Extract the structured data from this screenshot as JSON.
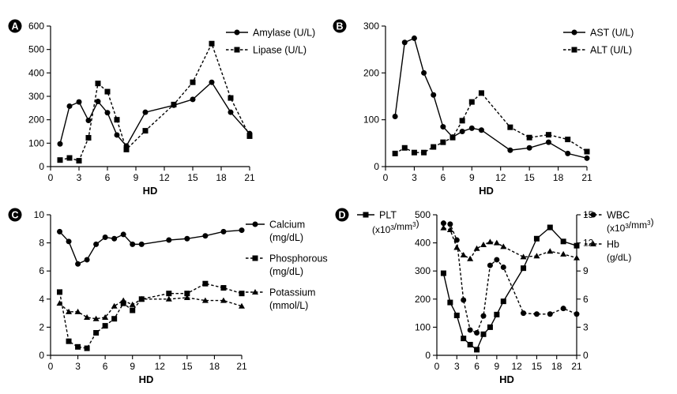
{
  "chart_data": [
    {
      "panel": "A",
      "type": "line",
      "xlabel": "HD",
      "ylabel": "",
      "xlim": [
        0,
        21
      ],
      "ylim": [
        0,
        600
      ],
      "xticks": [
        0,
        3,
        6,
        9,
        12,
        15,
        18,
        21
      ],
      "yticks": [
        0,
        100,
        200,
        300,
        400,
        500,
        600
      ],
      "legend_position": "top-right",
      "series": [
        {
          "name": "Amylase (U/L)",
          "marker": "circle",
          "dash": "solid",
          "x": [
            1,
            2,
            3,
            4,
            5,
            6,
            7,
            8,
            10,
            13,
            15,
            17,
            19,
            21
          ],
          "y": [
            97,
            258,
            276,
            197,
            278,
            230,
            135,
            88,
            232,
            262,
            287,
            360,
            232,
            141
          ]
        },
        {
          "name": "Lipase (U/L)",
          "marker": "square",
          "dash": "dashed",
          "x": [
            1,
            2,
            3,
            4,
            5,
            6,
            7,
            8,
            10,
            13,
            15,
            17,
            19,
            21
          ],
          "y": [
            28,
            37,
            25,
            123,
            355,
            320,
            200,
            73,
            153,
            265,
            360,
            525,
            293,
            130
          ]
        }
      ]
    },
    {
      "panel": "B",
      "type": "line",
      "xlabel": "HD",
      "ylabel": "",
      "xlim": [
        0,
        21
      ],
      "ylim": [
        0,
        300
      ],
      "xticks": [
        0,
        3,
        6,
        9,
        12,
        15,
        18,
        21
      ],
      "yticks": [
        0,
        100,
        200,
        300
      ],
      "legend_position": "top-right",
      "series": [
        {
          "name": "AST (U/L)",
          "marker": "circle",
          "dash": "solid",
          "x": [
            1,
            2,
            3,
            4,
            5,
            6,
            7,
            8,
            9,
            10,
            13,
            15,
            17,
            19,
            21
          ],
          "y": [
            107,
            265,
            274,
            200,
            153,
            85,
            63,
            75,
            82,
            78,
            35,
            40,
            52,
            28,
            18
          ]
        },
        {
          "name": "ALT (U/L)",
          "marker": "square",
          "dash": "dashed",
          "x": [
            1,
            2,
            3,
            4,
            5,
            6,
            7,
            8,
            9,
            10,
            13,
            15,
            17,
            19,
            21
          ],
          "y": [
            28,
            40,
            30,
            30,
            42,
            52,
            62,
            98,
            138,
            157,
            84,
            62,
            68,
            58,
            32
          ]
        }
      ]
    },
    {
      "panel": "C",
      "type": "line",
      "xlabel": "HD",
      "ylabel": "",
      "xlim": [
        0,
        21
      ],
      "ylim": [
        0,
        10
      ],
      "xticks": [
        0,
        3,
        6,
        9,
        12,
        15,
        18,
        21
      ],
      "yticks": [
        0,
        2,
        4,
        6,
        8,
        10
      ],
      "legend_position": "right",
      "series": [
        {
          "name": "Calcium",
          "unit": "(mg/dL)",
          "marker": "circle",
          "dash": "solid",
          "x": [
            1,
            2,
            3,
            4,
            5,
            6,
            7,
            8,
            9,
            10,
            13,
            15,
            17,
            19,
            21
          ],
          "y": [
            8.8,
            8.1,
            6.5,
            6.8,
            7.9,
            8.4,
            8.3,
            8.6,
            7.9,
            7.9,
            8.2,
            8.3,
            8.5,
            8.8,
            8.9
          ]
        },
        {
          "name": "Phosphorous",
          "unit": "(mg/dL)",
          "marker": "square",
          "dash": "dashed",
          "x": [
            1,
            2,
            3,
            4,
            5,
            6,
            7,
            8,
            9,
            10,
            13,
            15,
            17,
            19,
            21
          ],
          "y": [
            4.5,
            1.0,
            0.6,
            0.5,
            1.6,
            2.1,
            2.6,
            3.7,
            3.2,
            4.0,
            4.4,
            4.4,
            5.1,
            4.8,
            4.4
          ]
        },
        {
          "name": "Potassium",
          "unit": "(mmol/L)",
          "marker": "triangle",
          "dash": "dashed",
          "x": [
            1,
            2,
            3,
            4,
            5,
            6,
            7,
            8,
            9,
            10,
            13,
            15,
            17,
            19,
            21
          ],
          "y": [
            3.7,
            3.1,
            3.1,
            2.7,
            2.6,
            2.7,
            3.5,
            3.9,
            3.6,
            4.0,
            4.0,
            4.1,
            3.9,
            3.9,
            3.5
          ]
        }
      ]
    },
    {
      "panel": "D",
      "type": "line",
      "xlabel": "HD",
      "ylabel_left": "",
      "ylabel_right": "",
      "xlim": [
        0,
        21
      ],
      "ylim_left": [
        0,
        500
      ],
      "ylim_right": [
        0,
        15
      ],
      "xticks": [
        0,
        3,
        6,
        9,
        12,
        15,
        18,
        21
      ],
      "yticks_left": [
        0,
        100,
        200,
        300,
        400,
        500
      ],
      "yticks_right": [
        0,
        3,
        6,
        9,
        12,
        15
      ],
      "legend_position": "top",
      "series": [
        {
          "name": "PLT",
          "unit_pre": "(x10",
          "unit_exp": "3",
          "unit_post": "/mm",
          "unit_exp2": "3",
          "unit_close": ")",
          "axis": "left",
          "marker": "square",
          "dash": "solid",
          "x": [
            1,
            2,
            3,
            4,
            5,
            6,
            7,
            8,
            9,
            10,
            13,
            15,
            17,
            19,
            21
          ],
          "y": [
            292,
            188,
            142,
            60,
            38,
            20,
            75,
            100,
            145,
            192,
            310,
            415,
            455,
            405,
            390
          ]
        },
        {
          "name": "WBC",
          "unit_pre": "(x10",
          "unit_exp": "3",
          "unit_post": "/mm",
          "unit_exp2": "3",
          "unit_close": ")",
          "axis": "right",
          "marker": "circle",
          "dash": "dashed",
          "x": [
            1,
            2,
            3,
            4,
            5,
            6,
            7,
            8,
            9,
            10,
            13,
            15,
            17,
            19,
            21
          ],
          "y": [
            14.1,
            14.0,
            12.3,
            5.9,
            2.7,
            2.4,
            4.2,
            9.6,
            10.2,
            9.4,
            4.5,
            4.4,
            4.4,
            5.0,
            4.4
          ]
        },
        {
          "name": "Hb",
          "unit": "(g/dL)",
          "axis": "right",
          "marker": "triangle",
          "dash": "dashed",
          "x": [
            1,
            2,
            3,
            4,
            5,
            6,
            7,
            8,
            9,
            10,
            13,
            15,
            17,
            19,
            21
          ],
          "y": [
            13.6,
            13.4,
            11.5,
            10.7,
            10.3,
            11.4,
            11.8,
            12.1,
            12.0,
            11.6,
            10.5,
            10.6,
            11.1,
            10.8,
            10.4
          ]
        }
      ]
    }
  ]
}
